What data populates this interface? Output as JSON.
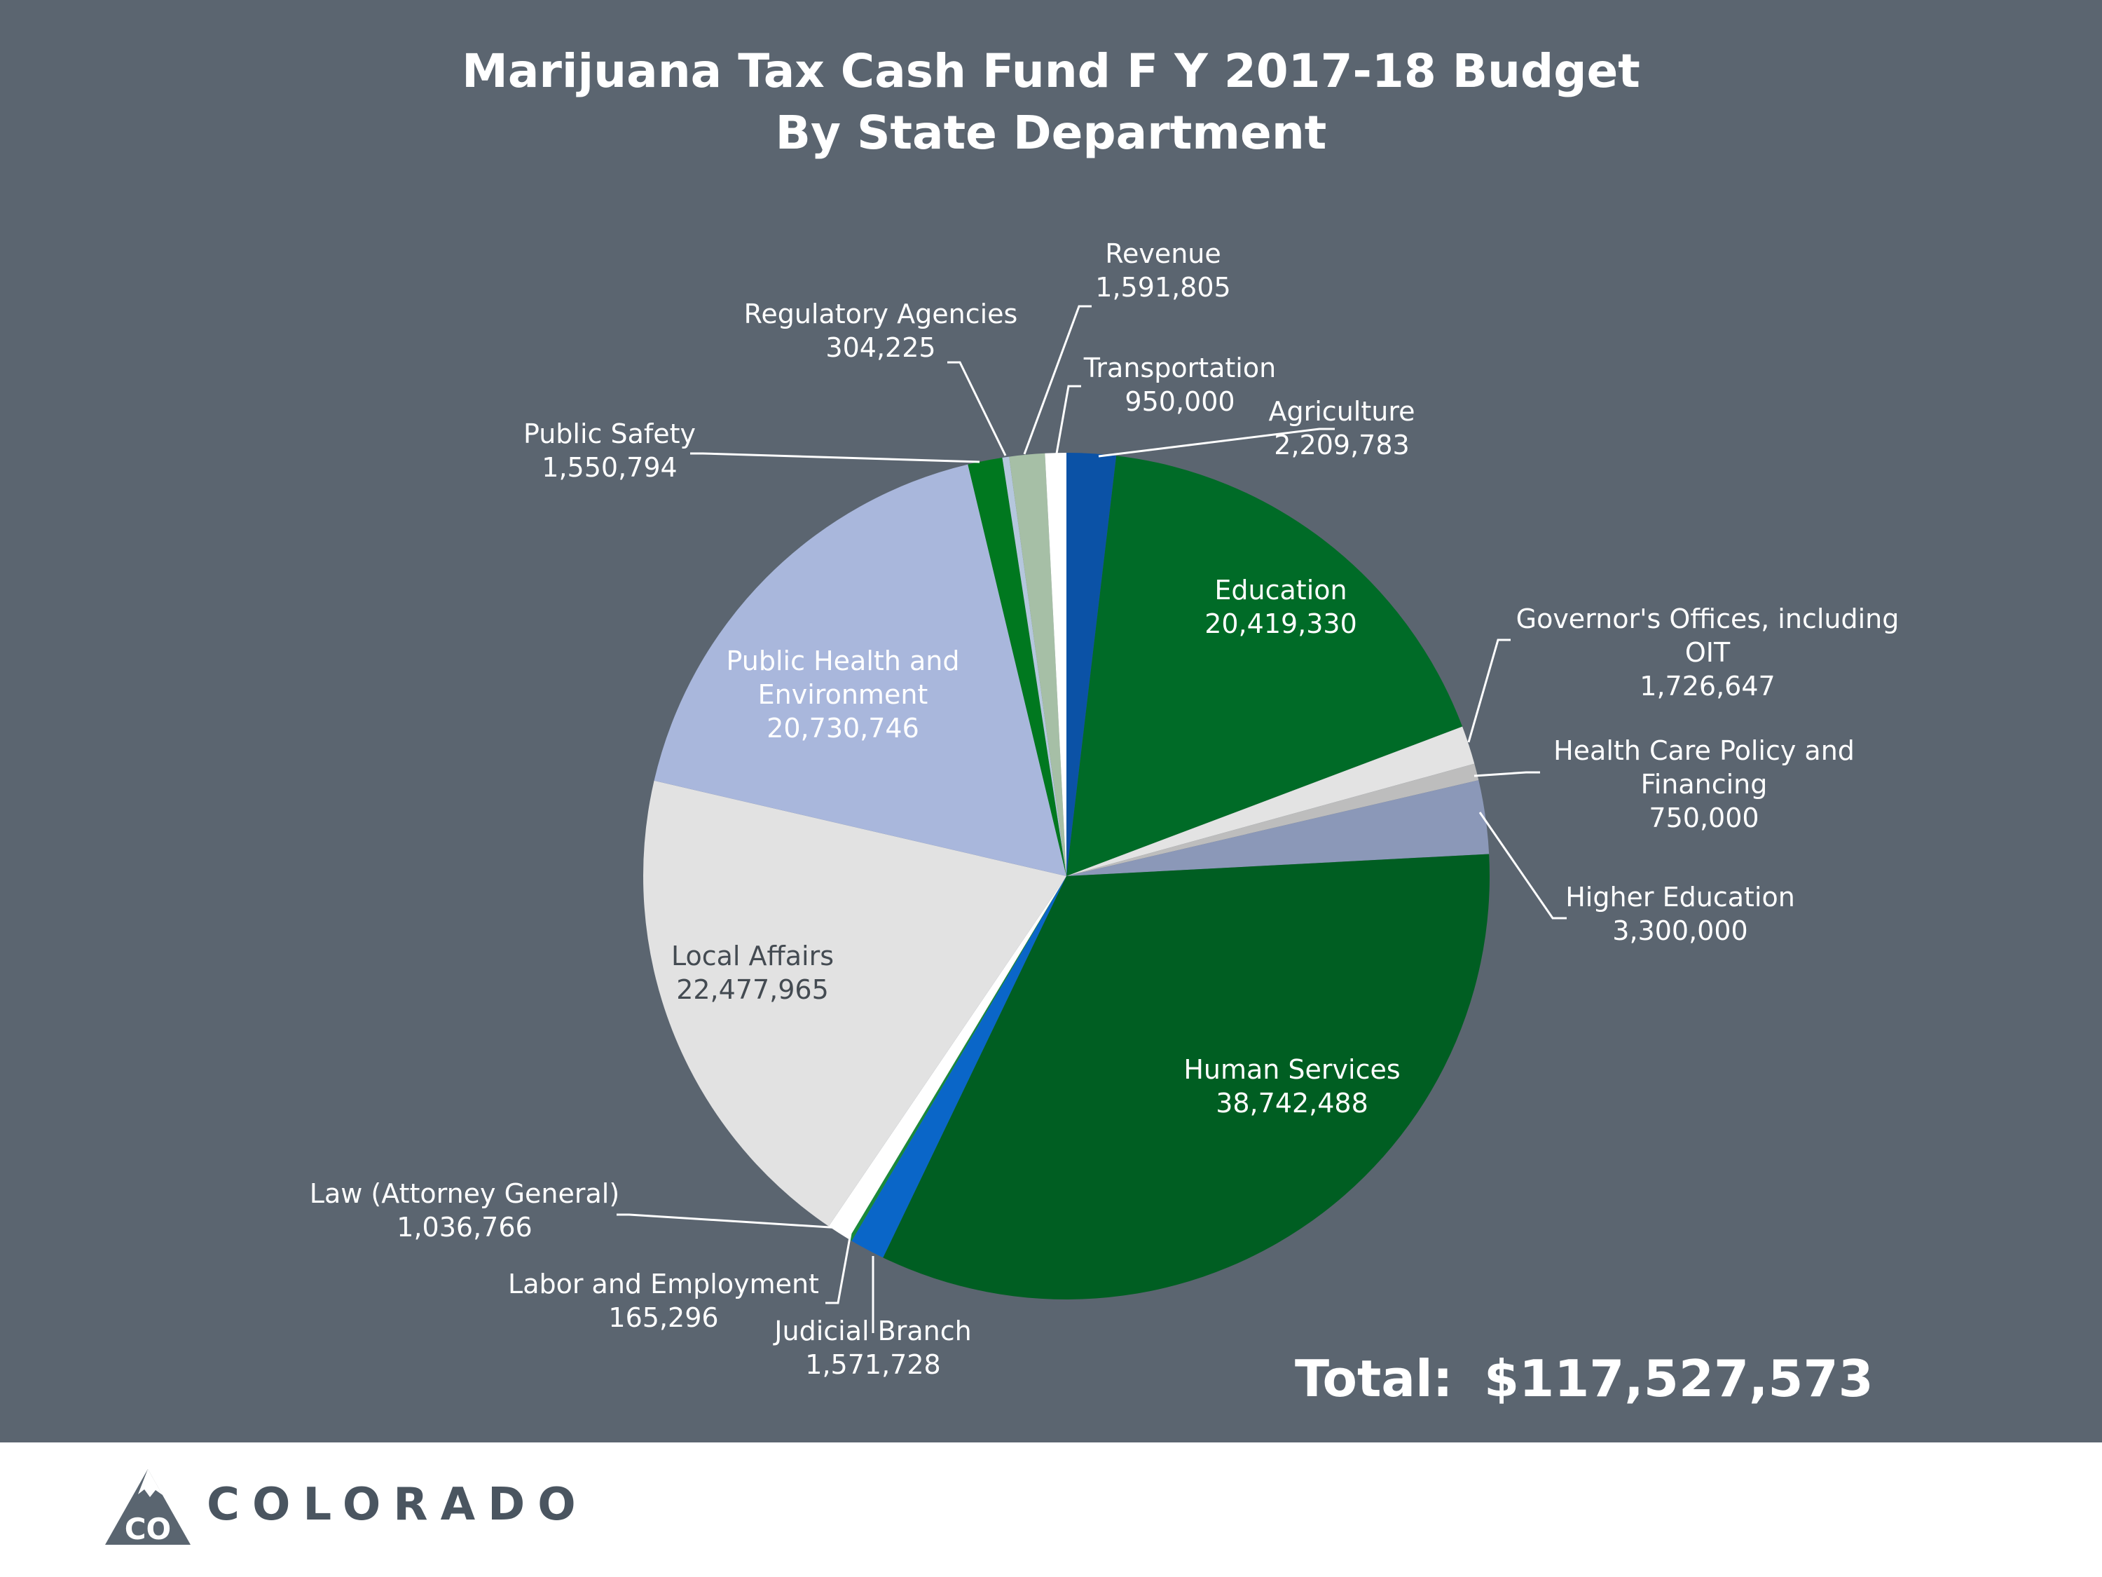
{
  "title_line1": "Marijuana Tax Cash Fund F Y 2017-18 Budget",
  "title_line2": "By State Department",
  "total_label": "Total:",
  "total_value": "$117,527,573",
  "brand": "COLORADO",
  "logo_letters": "CO",
  "chart_data": {
    "type": "pie",
    "title": "Marijuana Tax Cash Fund F Y 2017-18 Budget By State Department",
    "start_angle_deg": 0,
    "direction": "clockwise",
    "slices": [
      {
        "label": "Agriculture",
        "value": 2209783,
        "value_label": "2,209,783",
        "color": "#0b52a6"
      },
      {
        "label": "Education",
        "value": 20419330,
        "value_label": "20,419,330",
        "color": "#006b27"
      },
      {
        "label": "Governor's Offices, including OIT",
        "value": 1726647,
        "value_label": "1,726,647",
        "color": "#e3e3e3"
      },
      {
        "label": "Health Care Policy and Financing",
        "value": 750000,
        "value_label": "750,000",
        "color": "#bdbdbd"
      },
      {
        "label": "Higher Education",
        "value": 3300000,
        "value_label": "3,300,000",
        "color": "#8b98b8"
      },
      {
        "label": "Human Services",
        "value": 38742488,
        "value_label": "38,742,488",
        "color": "#005e22"
      },
      {
        "label": "Judicial Branch",
        "value": 1571728,
        "value_label": "1,571,728",
        "color": "#0a66c8"
      },
      {
        "label": "Labor and Employment",
        "value": 165296,
        "value_label": "165,296",
        "color": "#1a8a3a"
      },
      {
        "label": "Law (Attorney General)",
        "value": 1036766,
        "value_label": "1,036,766",
        "color": "#ffffff"
      },
      {
        "label": "Local Affairs",
        "value": 22477965,
        "value_label": "22,477,965",
        "color": "#e2e2e2"
      },
      {
        "label": "Public Health and Environment",
        "value": 20730746,
        "value_label": "20,730,746",
        "color": "#a9b7dc"
      },
      {
        "label": "Public Safety",
        "value": 1550794,
        "value_label": "1,550,794",
        "color": "#00781f"
      },
      {
        "label": "Regulatory Agencies",
        "value": 304225,
        "value_label": "304,225",
        "color": "#b5c7dd"
      },
      {
        "label": "Revenue",
        "value": 1591805,
        "value_label": "1,591,805",
        "color": "#a6bfa6"
      },
      {
        "label": "Transportation",
        "value": 950000,
        "value_label": "950,000",
        "color": "#ffffff"
      }
    ]
  }
}
